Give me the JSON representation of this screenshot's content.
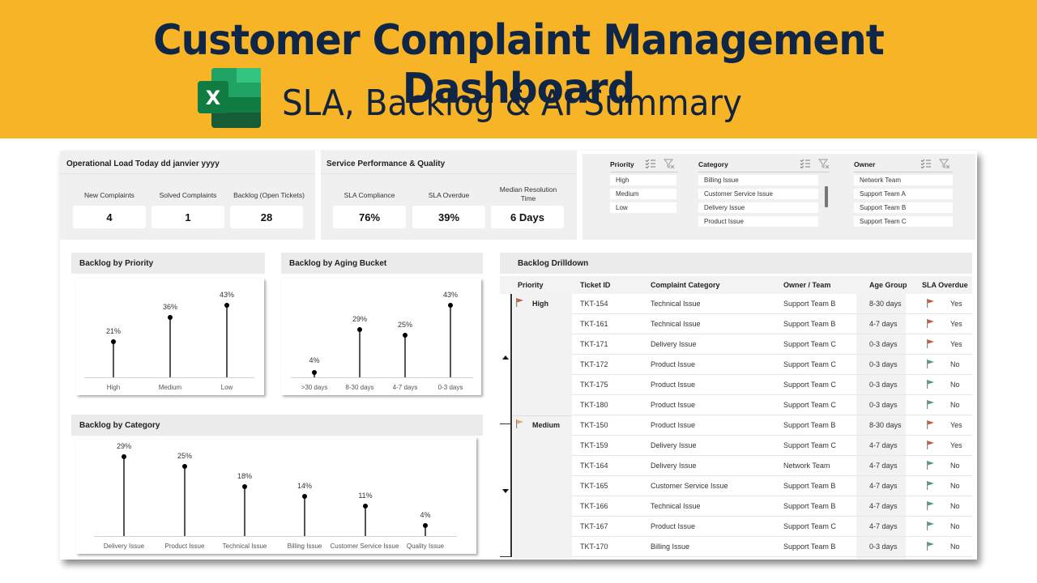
{
  "banner": {
    "title": "Customer Complaint Management Dashboard",
    "subtitle": "SLA, Backlog & AI Summary",
    "icon": "excel-icon"
  },
  "operational": {
    "title": "Operational Load Today dd janvier yyyy",
    "kpis": [
      {
        "label": "New Complaints",
        "value": "4"
      },
      {
        "label": "Solved Complaints",
        "value": "1"
      },
      {
        "label": "Backlog (Open Tickets)",
        "value": "28"
      }
    ]
  },
  "service": {
    "title": "Service Performance & Quality",
    "kpis": [
      {
        "label": "SLA Compliance",
        "value": "76%"
      },
      {
        "label": "SLA Overdue",
        "value": "39%"
      },
      {
        "label": "Median Resolution Time",
        "value": "6 Days"
      }
    ]
  },
  "slicers": {
    "priority": {
      "title": "Priority",
      "items": [
        "High",
        "Medium",
        "Low"
      ]
    },
    "category": {
      "title": "Category",
      "items": [
        "Billing Issue",
        "Customer Service Issue",
        "Delivery Issue",
        "Product Issue"
      ]
    },
    "owner": {
      "title": "Owner",
      "items": [
        "Network Team",
        "Support Team A",
        "Support Team B",
        "Support Team C"
      ]
    },
    "icons": [
      "multi-select-icon",
      "clear-filter-icon"
    ]
  },
  "chart_data": [
    {
      "type": "lollipop",
      "title": "Backlog by Priority",
      "categories": [
        "High",
        "Medium",
        "Low"
      ],
      "values": [
        21,
        36,
        43
      ],
      "labels": [
        "21%",
        "36%",
        "43%"
      ],
      "unit": "%",
      "ylim": [
        0,
        50
      ],
      "grid": false,
      "legend": "none"
    },
    {
      "type": "lollipop",
      "title": "Backlog by Aging Bucket",
      "categories": [
        ">30 days",
        "8-30 days",
        "4-7 days",
        "0-3 days"
      ],
      "values": [
        4,
        29,
        25,
        43
      ],
      "labels": [
        "4%",
        "29%",
        "25%",
        "43%"
      ],
      "unit": "%",
      "ylim": [
        0,
        50
      ],
      "grid": false,
      "legend": "none"
    },
    {
      "type": "lollipop",
      "title": "Backlog by Category",
      "categories": [
        "Delivery Issue",
        "Product Issue",
        "Technical Issue",
        "Billing Issue",
        "Customer Service Issue",
        "Quality Issue"
      ],
      "values": [
        29,
        25,
        18,
        14,
        11,
        4
      ],
      "labels": [
        "29%",
        "25%",
        "18%",
        "14%",
        "11%",
        "4%"
      ],
      "unit": "%",
      "ylim": [
        0,
        35
      ],
      "grid": false,
      "legend": "none"
    }
  ],
  "drilldown": {
    "title": "Backlog Drilldown",
    "columns": [
      "Priority",
      "Ticket ID",
      "Complaint Category",
      "Owner / Team",
      "Age Group",
      "SLA Overdue"
    ],
    "groups": [
      {
        "priority": "High",
        "flag_color": "#c8573a"
      },
      {
        "priority": "Medium",
        "flag_color": "#e0a860"
      }
    ],
    "rows": [
      {
        "id": "TKT-154",
        "category": "Technical Issue",
        "owner": "Support Team B",
        "age": "8-30 days",
        "overdue": "Yes"
      },
      {
        "id": "TKT-161",
        "category": "Technical Issue",
        "owner": "Support Team B",
        "age": "4-7 days",
        "overdue": "Yes"
      },
      {
        "id": "TKT-171",
        "category": "Delivery Issue",
        "owner": "Support Team C",
        "age": "0-3 days",
        "overdue": "Yes"
      },
      {
        "id": "TKT-172",
        "category": "Product Issue",
        "owner": "Support Team C",
        "age": "0-3 days",
        "overdue": "No"
      },
      {
        "id": "TKT-175",
        "category": "Product Issue",
        "owner": "Support Team C",
        "age": "0-3 days",
        "overdue": "No"
      },
      {
        "id": "TKT-180",
        "category": "Product Issue",
        "owner": "Support Team C",
        "age": "0-3 days",
        "overdue": "No"
      },
      {
        "id": "TKT-150",
        "category": "Product Issue",
        "owner": "Support Team B",
        "age": "8-30 days",
        "overdue": "Yes"
      },
      {
        "id": "TKT-159",
        "category": "Delivery Issue",
        "owner": "Support Team C",
        "age": "4-7 days",
        "overdue": "Yes"
      },
      {
        "id": "TKT-164",
        "category": "Delivery Issue",
        "owner": "Network Team",
        "age": "4-7 days",
        "overdue": "No"
      },
      {
        "id": "TKT-165",
        "category": "Customer Service Issue",
        "owner": "Support Team B",
        "age": "4-7 days",
        "overdue": "No"
      },
      {
        "id": "TKT-166",
        "category": "Technical Issue",
        "owner": "Support Team B",
        "age": "4-7 days",
        "overdue": "No"
      },
      {
        "id": "TKT-167",
        "category": "Product Issue",
        "owner": "Support Team C",
        "age": "4-7 days",
        "overdue": "No"
      },
      {
        "id": "TKT-170",
        "category": "Billing Issue",
        "owner": "Support Team B",
        "age": "0-3 days",
        "overdue": "No"
      }
    ]
  },
  "colors": {
    "banner": "#f8b427",
    "title_navy": "#0f2647",
    "flag_red": "#c8573a",
    "flag_green": "#4c9a7a",
    "flag_orange": "#e0a860"
  }
}
